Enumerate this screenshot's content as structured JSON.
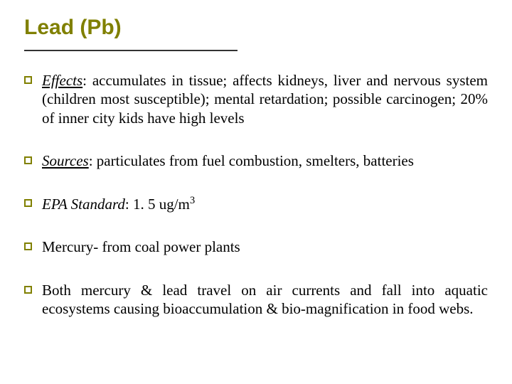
{
  "title": "Lead (Pb)",
  "accent_color": "#808000",
  "divider_color": "#333333",
  "text_color": "#000000",
  "background_color": "#ffffff",
  "title_fontsize": 30,
  "body_fontsize": 21,
  "bullets": [
    {
      "label": "Effects",
      "label_style": "underline-italic",
      "rest": ": accumulates in tissue; affects kidneys, liver and nervous system (children most susceptible); mental retardation; possible carcinogen; 20% of inner city kids have high levels"
    },
    {
      "label": "Sources",
      "label_style": "underline-italic",
      "rest": ": particulates from fuel combustion, smelters, batteries"
    },
    {
      "label": "EPA Standard",
      "label_style": "italic",
      "rest_prefix": ": 1. 5 ug/m",
      "superscript": "3"
    },
    {
      "plain": "Mercury-  from coal power plants"
    },
    {
      "plain": "Both mercury & lead travel on air currents and fall into aquatic ecosystems causing bioaccumulation & bio-magnification in food webs."
    }
  ]
}
